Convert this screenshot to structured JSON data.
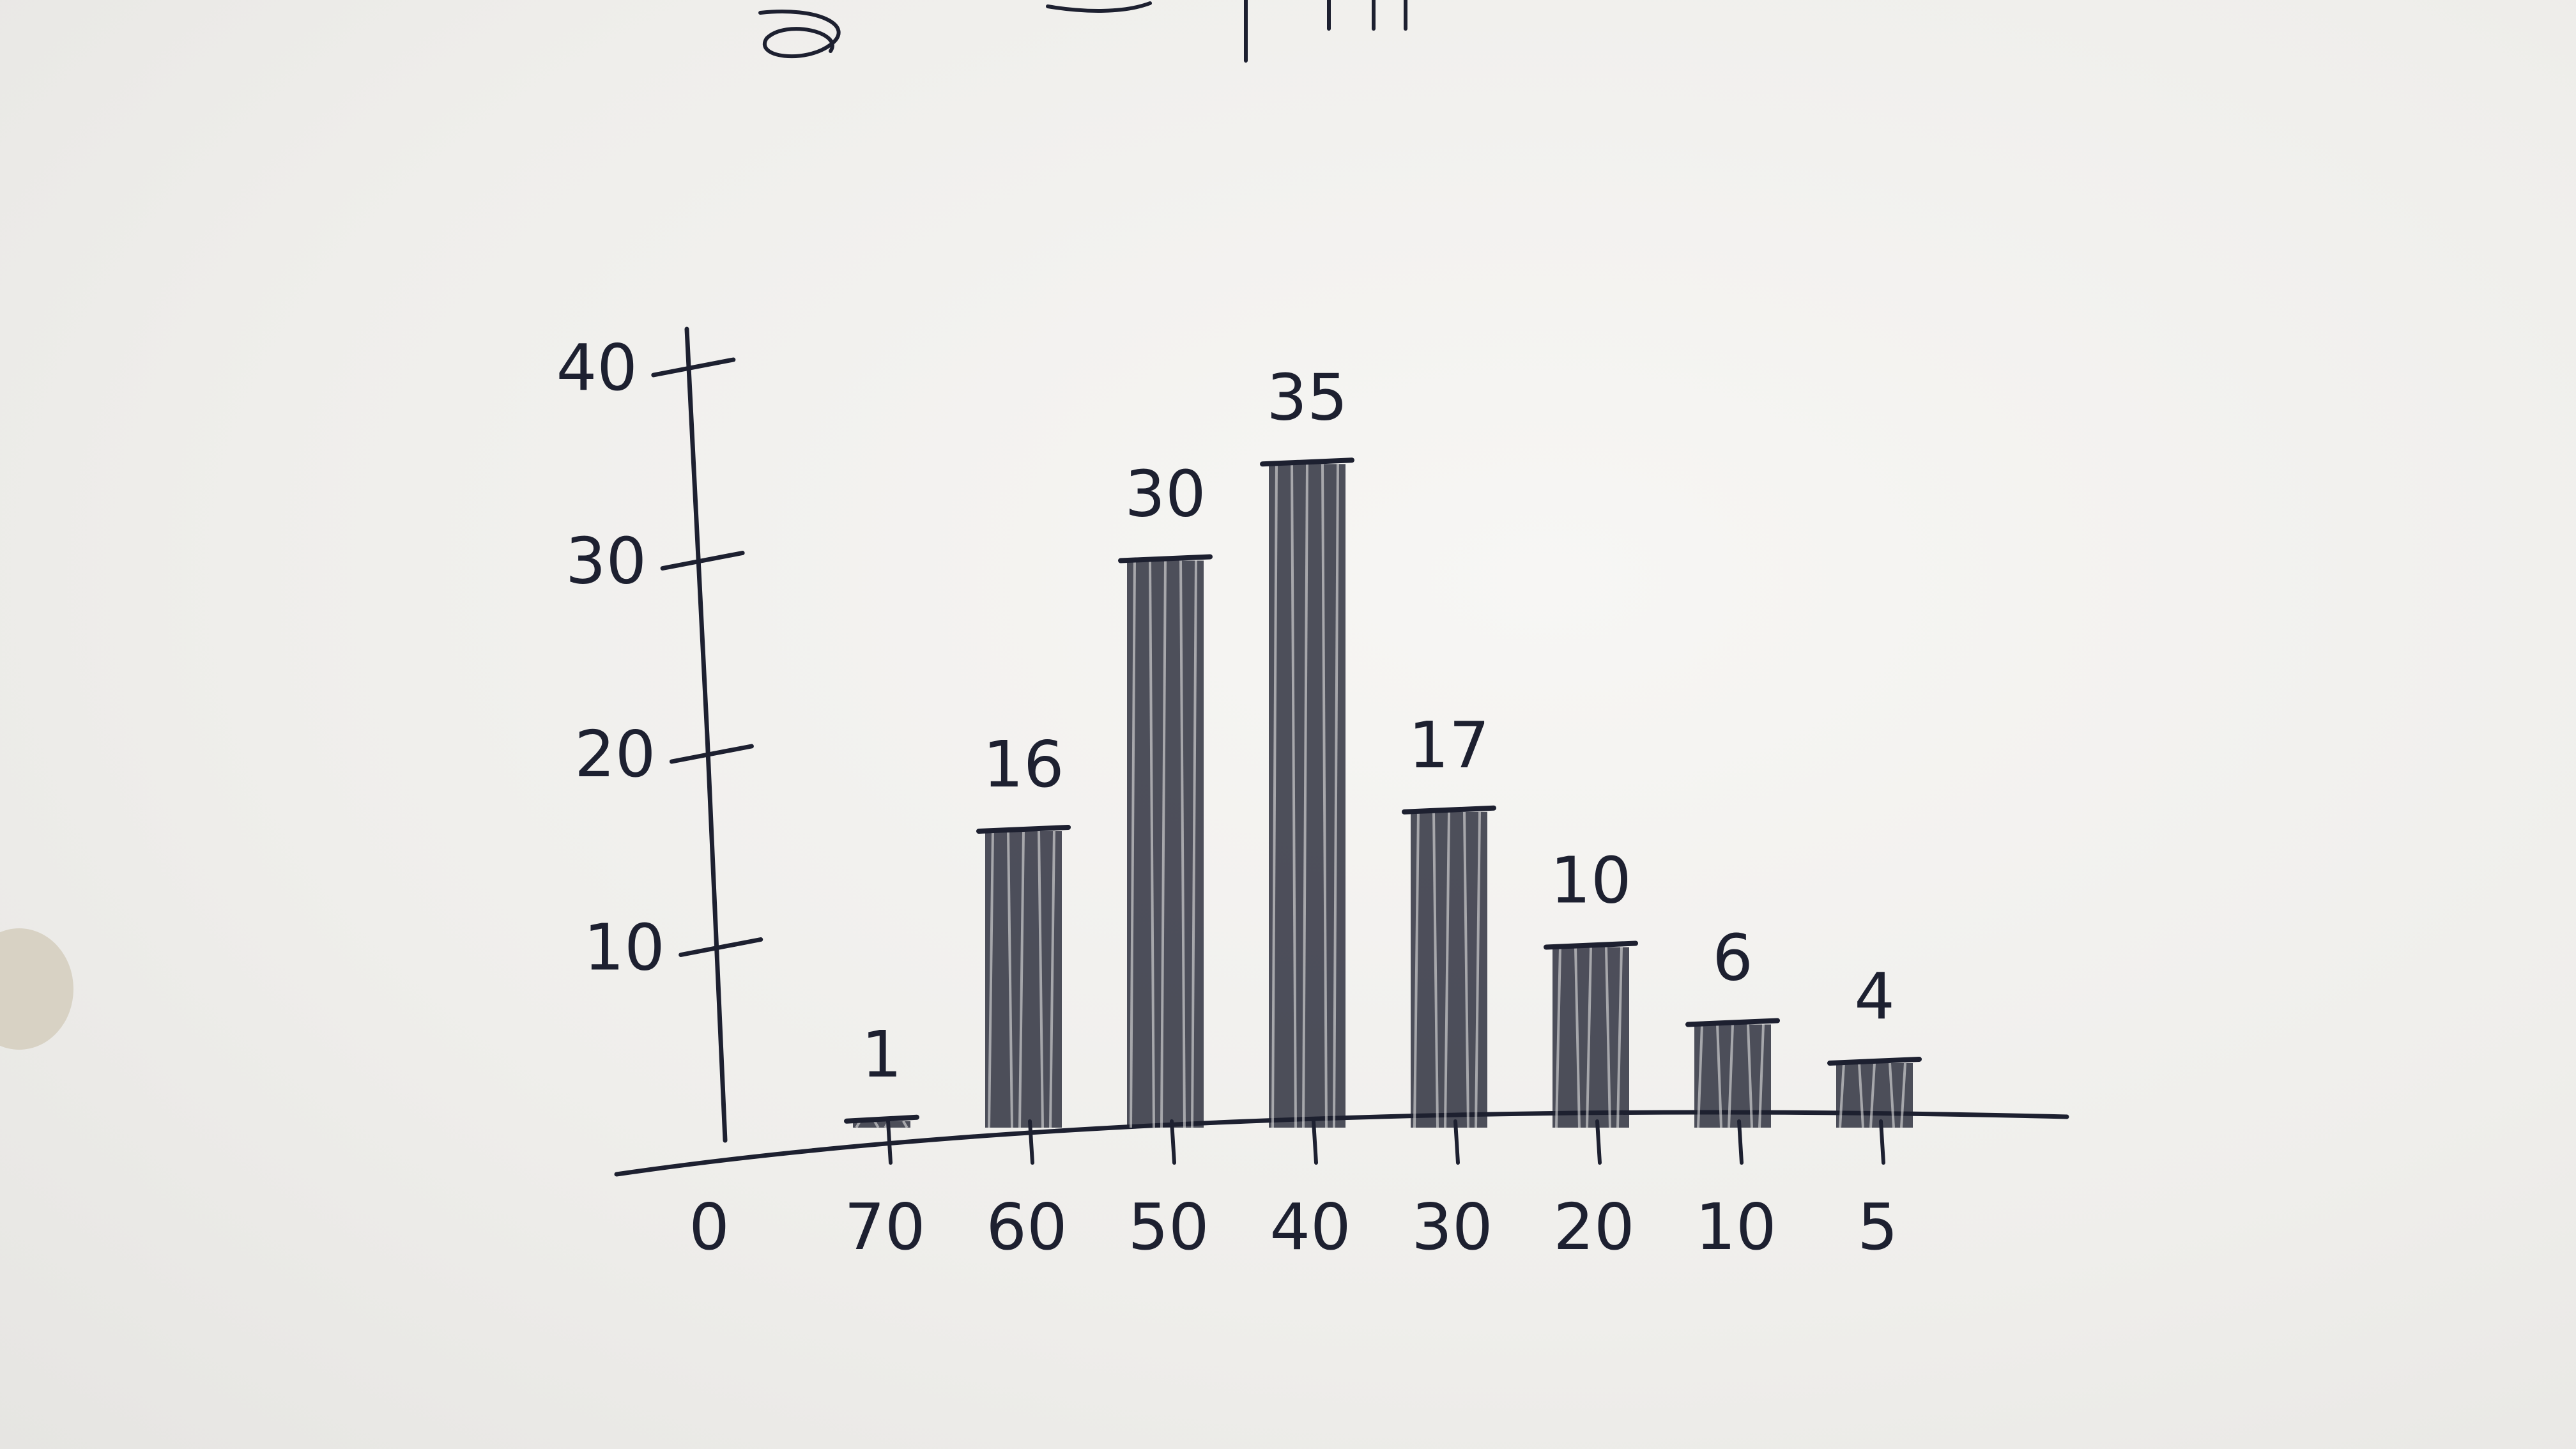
{
  "chart_data": {
    "type": "bar",
    "title": "",
    "xlabel": "",
    "ylabel": "",
    "categories": [
      "70",
      "60",
      "50",
      "40",
      "30",
      "20",
      "10",
      "5"
    ],
    "x_origin_label": "0",
    "values": [
      1,
      16,
      30,
      35,
      17,
      10,
      6,
      4
    ],
    "data_labels": [
      "1",
      "16",
      "30",
      "35",
      "17",
      "10",
      "6",
      "4"
    ],
    "y_ticks": [
      "10",
      "20",
      "30",
      "40"
    ],
    "ylim": [
      0,
      40
    ],
    "grid": false,
    "legend": "none",
    "colors": {
      "ink": "#1d2030",
      "paper": "#f1f0ee",
      "hole": "#d8d2c4"
    }
  }
}
